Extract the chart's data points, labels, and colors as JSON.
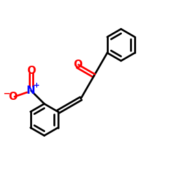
{
  "background_color": "#ffffff",
  "bond_color": "#000000",
  "oxygen_color": "#ff0000",
  "nitrogen_color": "#0000ff",
  "line_width": 2.0,
  "font_size_atom": 11,
  "xlim": [
    0.0,
    5.0
  ],
  "ylim": [
    0.0,
    5.0
  ],
  "figsize": [
    2.5,
    2.5
  ],
  "dpi": 100
}
